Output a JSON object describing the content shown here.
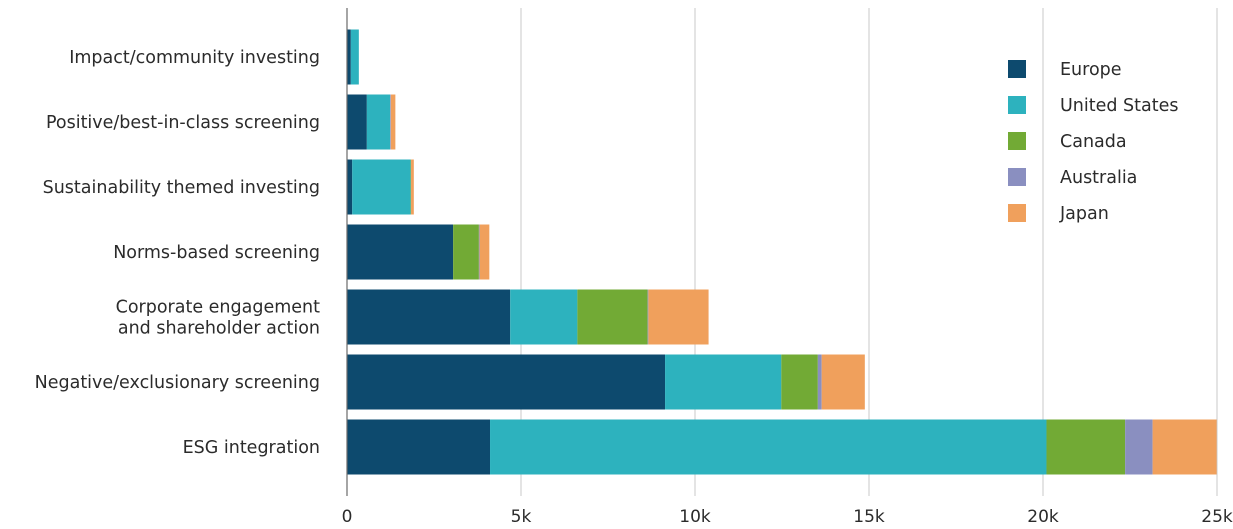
{
  "chart_data": {
    "type": "bar",
    "orientation": "horizontal",
    "stacked": true,
    "categories": [
      [
        "Impact/community investing"
      ],
      [
        "Positive/best-in-class screening"
      ],
      [
        "Sustainability themed investing"
      ],
      [
        "Norms-based screening"
      ],
      [
        "Corporate engagement",
        "and shareholder action"
      ],
      [
        "Negative/exclusionary screening"
      ],
      [
        "ESG integration"
      ]
    ],
    "series": [
      {
        "name": "Europe",
        "color": "#0d4a6e",
        "values": [
          110,
          570,
          150,
          3050,
          4690,
          9140,
          4110
        ]
      },
      {
        "name": "United States",
        "color": "#2db2be",
        "values": [
          230,
          670,
          1680,
          0,
          1930,
          3340,
          15990
        ]
      },
      {
        "name": "Canada",
        "color": "#72aa35",
        "values": [
          0,
          0,
          10,
          740,
          2020,
          1050,
          2260
        ]
      },
      {
        "name": "Australia",
        "color": "#8a8fc0",
        "values": [
          0,
          20,
          0,
          20,
          20,
          110,
          790
        ]
      },
      {
        "name": "Japan",
        "color": "#f0a05c",
        "values": [
          0,
          130,
          80,
          280,
          1730,
          1240,
          1840
        ]
      }
    ],
    "xlim": [
      0,
      25000
    ],
    "xticks": [
      0,
      5000,
      10000,
      15000,
      20000,
      25000
    ],
    "xtick_labels": [
      "0",
      "5k",
      "10k",
      "15k",
      "20k",
      "25k"
    ],
    "grid": "vertical",
    "legend_position": "top-right",
    "title": "",
    "xlabel": "",
    "ylabel": ""
  }
}
